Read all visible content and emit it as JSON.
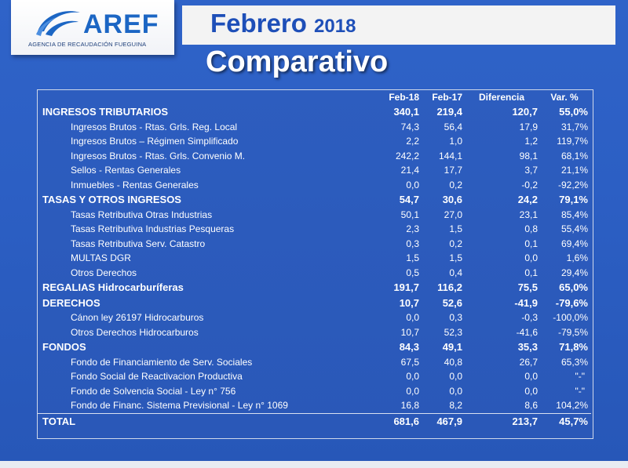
{
  "logo": {
    "name": "AREF",
    "subtitle": "AGENCIA DE RECAUDACIÓN FUEGUINA"
  },
  "header": {
    "month": "Febrero",
    "year": "2018",
    "subtitle": "Comparativo"
  },
  "table": {
    "columns": [
      "Feb-18",
      "Feb-17",
      "Diferencia",
      "Var. %"
    ],
    "rows": [
      {
        "label": "INGRESOS TRIBUTARIOS",
        "v1": "340,1",
        "v2": "219,4",
        "v3": "120,7",
        "v4": "55,0%",
        "kind": "hdr"
      },
      {
        "label": "Ingresos Brutos - Rtas. Grls. Reg. Local",
        "v1": "74,3",
        "v2": "56,4",
        "v3": "17,9",
        "v4": "31,7%",
        "kind": "item"
      },
      {
        "label": "Ingresos Brutos – Régimen Simplificado",
        "v1": "2,2",
        "v2": "1,0",
        "v3": "1,2",
        "v4": "119,7%",
        "kind": "item"
      },
      {
        "label": "Ingresos Brutos - Rtas. Grls. Convenio M.",
        "v1": "242,2",
        "v2": "144,1",
        "v3": "98,1",
        "v4": "68,1%",
        "kind": "item"
      },
      {
        "label": "Sellos - Rentas Generales",
        "v1": "21,4",
        "v2": "17,7",
        "v3": "3,7",
        "v4": "21,1%",
        "kind": "item"
      },
      {
        "label": "Inmuebles - Rentas Generales",
        "v1": "0,0",
        "v2": "0,2",
        "v3": "-0,2",
        "v4": "-92,2%",
        "kind": "item"
      },
      {
        "label": "TASAS Y OTROS INGRESOS",
        "v1": "54,7",
        "v2": "30,6",
        "v3": "24,2",
        "v4": "79,1%",
        "kind": "hdr"
      },
      {
        "label": "Tasas Retributiva Otras Industrias",
        "v1": "50,1",
        "v2": "27,0",
        "v3": "23,1",
        "v4": "85,4%",
        "kind": "item"
      },
      {
        "label": "Tasas Retributiva Industrias Pesqueras",
        "v1": "2,3",
        "v2": "1,5",
        "v3": "0,8",
        "v4": "55,4%",
        "kind": "item"
      },
      {
        "label": "Tasas Retributiva Serv. Catastro",
        "v1": "0,3",
        "v2": "0,2",
        "v3": "0,1",
        "v4": "69,4%",
        "kind": "item"
      },
      {
        "label": "MULTAS DGR",
        "v1": "1,5",
        "v2": "1,5",
        "v3": "0,0",
        "v4": "1,6%",
        "kind": "item"
      },
      {
        "label": "Otros Derechos",
        "v1": "0,5",
        "v2": "0,4",
        "v3": "0,1",
        "v4": "29,4%",
        "kind": "item"
      },
      {
        "label": "REGALIAS Hidrocarburíferas",
        "v1": "191,7",
        "v2": "116,2",
        "v3": "75,5",
        "v4": "65,0%",
        "kind": "hdr"
      },
      {
        "label": "DERECHOS",
        "v1": "10,7",
        "v2": "52,6",
        "v3": "-41,9",
        "v4": "-79,6%",
        "kind": "hdr"
      },
      {
        "label": "Cánon ley 26197 Hidrocarburos",
        "v1": "0,0",
        "v2": "0,3",
        "v3": "-0,3",
        "v4": "-100,0%",
        "kind": "item"
      },
      {
        "label": "Otros Derechos Hidrocarburos",
        "v1": "10,7",
        "v2": "52,3",
        "v3": "-41,6",
        "v4": "-79,5%",
        "kind": "item"
      },
      {
        "label": "FONDOS",
        "v1": "84,3",
        "v2": "49,1",
        "v3": "35,3",
        "v4": "71,8%",
        "kind": "hdr"
      },
      {
        "label": "Fondo de Financiamiento de Serv. Sociales",
        "v1": "67,5",
        "v2": "40,8",
        "v3": "26,7",
        "v4": "65,3%",
        "kind": "item"
      },
      {
        "label": "Fondo Social de Reactivacion Productiva",
        "v1": "0,0",
        "v2": "0,0",
        "v3": "0,0",
        "v4": "\"-\"",
        "kind": "item"
      },
      {
        "label": "Fondo de Solvencia Social - Ley n° 756",
        "v1": "0,0",
        "v2": "0,0",
        "v3": "0,0",
        "v4": "\"-\"",
        "kind": "item"
      },
      {
        "label": "Fondo de Financ. Sistema Previsional - Ley n° 1069",
        "v1": "16,8",
        "v2": "8,2",
        "v3": "8,6",
        "v4": "104,2%",
        "kind": "item"
      },
      {
        "label": "TOTAL",
        "v1": "681,6",
        "v2": "467,9",
        "v3": "213,7",
        "v4": "45,7%",
        "kind": "total"
      }
    ]
  }
}
